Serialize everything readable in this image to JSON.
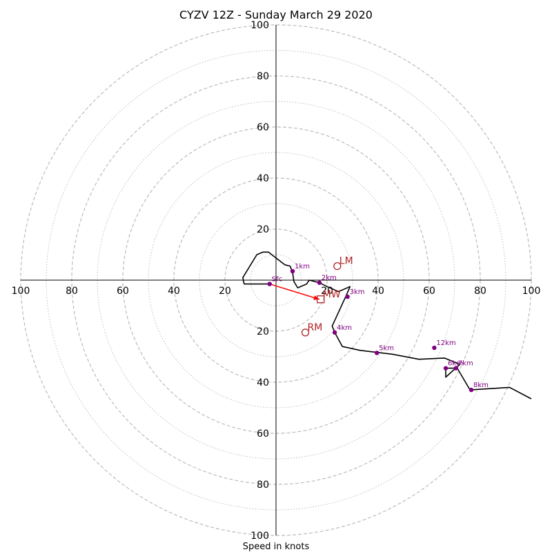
{
  "chart_data": {
    "type": "scatter",
    "subtype": "hodograph",
    "title": "CYZV 12Z - Sunday March 29 2020",
    "xlabel": "Speed in knots",
    "ylabel": "",
    "max_speed": 100,
    "ring_labels": [
      "20",
      "40",
      "60",
      "80",
      "100"
    ],
    "ring_major_step": 20,
    "ring_minor_step": 10,
    "grid": true,
    "colors": {
      "trace": "#000000",
      "height_points": "#800080",
      "motion": "#b22222",
      "shear_vector": "#ff0000",
      "grid": "#bbbbbb"
    },
    "trace": [
      [
        -2.5,
        -1.5
      ],
      [
        -12.5,
        -1.5
      ],
      [
        -13,
        1
      ],
      [
        -7.5,
        10
      ],
      [
        -5,
        11
      ],
      [
        -3,
        11
      ],
      [
        3.5,
        6
      ],
      [
        5.5,
        5.5
      ],
      [
        6.5,
        3
      ],
      [
        7,
        -0.5
      ],
      [
        8.5,
        -3
      ],
      [
        12,
        -1.5
      ],
      [
        13,
        0
      ],
      [
        17,
        -1
      ],
      [
        20,
        -2.5
      ],
      [
        24.5,
        -4.5
      ],
      [
        29,
        -2.5
      ],
      [
        27.5,
        -6
      ],
      [
        22,
        -18
      ],
      [
        23,
        -20.5
      ],
      [
        26,
        -26
      ],
      [
        33,
        -27.5
      ],
      [
        45.5,
        -29
      ],
      [
        56,
        -31
      ],
      [
        66,
        -30.5
      ],
      [
        72,
        -33
      ],
      [
        66.5,
        -38
      ],
      [
        66.5,
        -34.5
      ],
      [
        71,
        -34.5
      ],
      [
        76,
        -43
      ],
      [
        91.5,
        -42
      ],
      [
        100,
        -46.5
      ]
    ],
    "height_points": [
      {
        "label": "Sfc",
        "u": -2.5,
        "v": -1.5
      },
      {
        "label": "1km",
        "u": 6.5,
        "v": 3.5
      },
      {
        "label": "2km",
        "u": 17,
        "v": -1
      },
      {
        "label": "3km",
        "u": 28,
        "v": -6.5
      },
      {
        "label": "4km",
        "u": 23,
        "v": -20.5
      },
      {
        "label": "5km",
        "u": 39.5,
        "v": -28.5
      },
      {
        "label": "6km",
        "u": 66.5,
        "v": -34.5
      },
      {
        "label": "7km",
        "u": 70.5,
        "v": -34.5
      },
      {
        "label": "8km",
        "u": 76.5,
        "v": -43
      },
      {
        "label": "12km",
        "u": 62,
        "v": -26.5
      }
    ],
    "storm_motion": [
      {
        "label": "LM",
        "marker": "circle",
        "u": 24,
        "v": 5.5
      },
      {
        "label": "RM",
        "marker": "circle",
        "u": 11.5,
        "v": -20.5
      },
      {
        "label": "MW",
        "marker": "square",
        "u": 17.5,
        "v": -7.5
      }
    ],
    "shear_vector": {
      "from": [
        -2.5,
        -1.5
      ],
      "to": [
        17,
        -7.5
      ]
    }
  }
}
